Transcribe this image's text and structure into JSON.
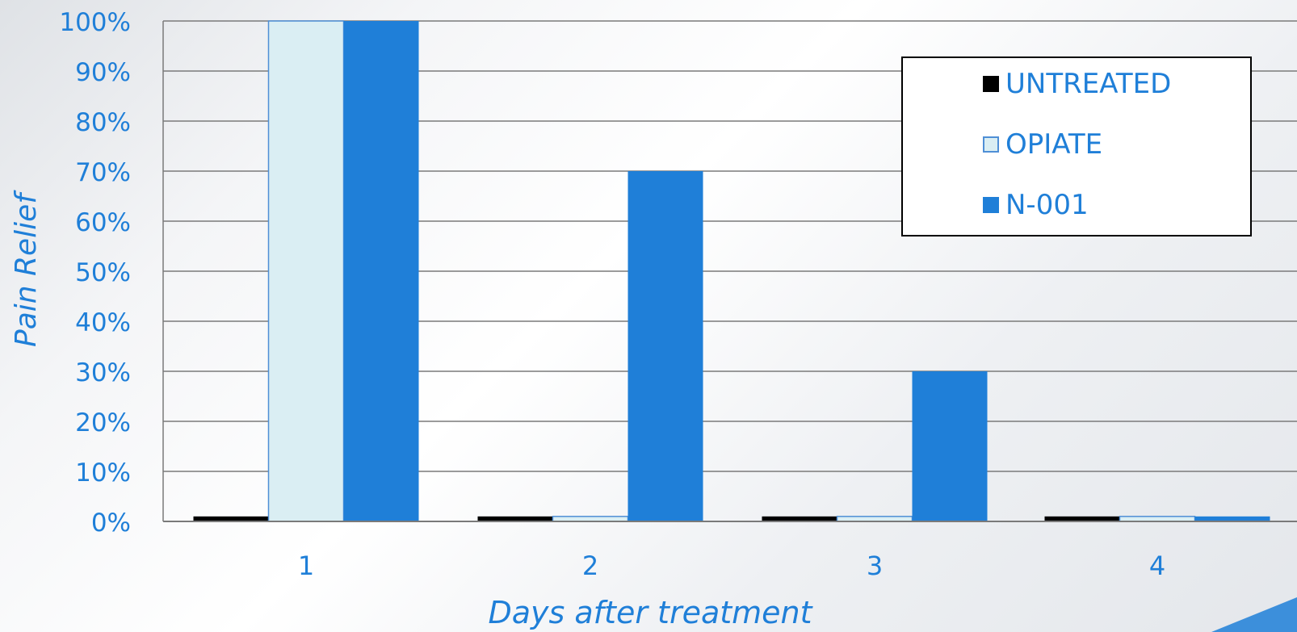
{
  "colors": {
    "accent": "#1f7fd8",
    "untreated": "#000000",
    "opiate_fill": "#daeef3",
    "opiate_border": "#4f8fd6",
    "n001": "#1f7fd8",
    "grid": "#7a7a7a"
  },
  "legend": {
    "items": [
      {
        "label": "UNTREATED",
        "swatch": "solid-black"
      },
      {
        "label": "OPIATE",
        "swatch": "outlined-light-blue"
      },
      {
        "label": "N-001",
        "swatch": "solid-blue"
      }
    ]
  },
  "chart_data": {
    "type": "bar",
    "title": "",
    "xlabel": "Days after treatment",
    "ylabel": "Pain Relief",
    "categories": [
      "1",
      "2",
      "3",
      "4"
    ],
    "series": [
      {
        "name": "UNTREATED",
        "values": [
          1,
          1,
          1,
          1
        ]
      },
      {
        "name": "OPIATE",
        "values": [
          100,
          1,
          1,
          1
        ]
      },
      {
        "name": "N-001",
        "values": [
          100,
          70,
          30,
          1
        ]
      }
    ],
    "ylim": [
      0,
      100
    ],
    "yticks": [
      0,
      10,
      20,
      30,
      40,
      50,
      60,
      70,
      80,
      90,
      100
    ],
    "ytick_labels": [
      "0%",
      "10%",
      "20%",
      "30%",
      "40%",
      "50%",
      "60%",
      "70%",
      "80%",
      "90%",
      "100%"
    ],
    "grid": true,
    "legend_position": "top-right"
  }
}
